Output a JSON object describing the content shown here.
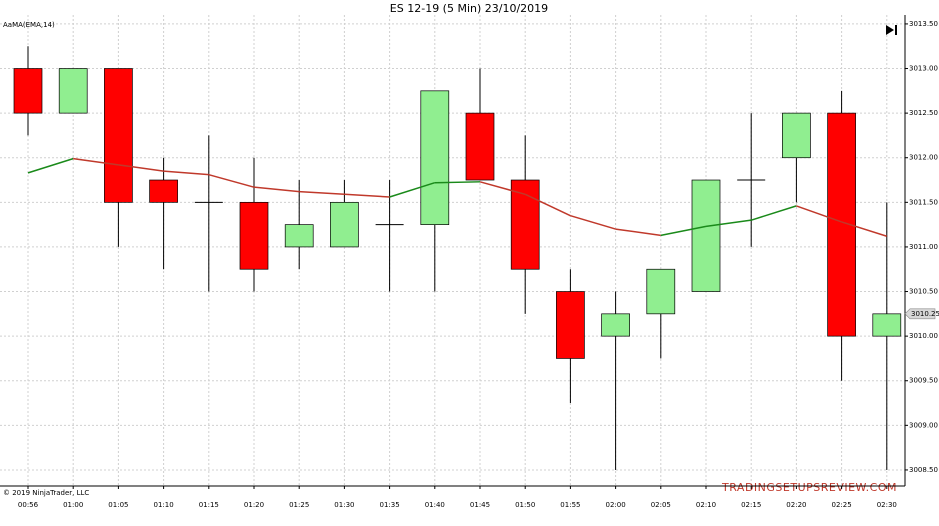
{
  "chart_data": {
    "type": "candlestick",
    "title": "ES 12-19 (5 Min)  23/10/2019",
    "copyright": "© 2019 NinjaTrader, LLC",
    "watermark": "TRADINGSETUPSREVIEW.COM",
    "categories": [
      "00:56",
      "01:00",
      "01:05",
      "01:10",
      "01:15",
      "01:20",
      "01:25",
      "01:30",
      "01:35",
      "01:40",
      "01:45",
      "01:50",
      "01:55",
      "02:00",
      "02:05",
      "02:10",
      "02:15",
      "02:20",
      "02:25",
      "02:30"
    ],
    "open": [
      3013.0,
      3012.5,
      3013.0,
      3011.75,
      3011.5,
      3011.5,
      3011.0,
      3011.0,
      3011.25,
      3011.25,
      3012.5,
      3011.75,
      3010.5,
      3010.0,
      3010.25,
      3010.5,
      3011.75,
      3012.0,
      3012.5,
      3010.0
    ],
    "high": [
      3013.25,
      3013.0,
      3013.0,
      3012.0,
      3012.25,
      3012.0,
      3011.75,
      3011.75,
      3011.75,
      3012.75,
      3013.0,
      3012.25,
      3010.75,
      3010.5,
      3010.75,
      3011.75,
      3012.5,
      3012.5,
      3012.75,
      3011.5
    ],
    "low": [
      3012.25,
      3012.5,
      3011.0,
      3010.75,
      3010.5,
      3010.5,
      3010.75,
      3011.0,
      3010.5,
      3010.5,
      3011.75,
      3010.25,
      3009.25,
      3008.5,
      3009.75,
      3010.5,
      3011.0,
      3011.5,
      3009.5,
      3008.5
    ],
    "close": [
      3012.5,
      3013.0,
      3011.5,
      3011.5,
      3011.5,
      3010.75,
      3011.25,
      3011.5,
      3011.25,
      3012.75,
      3011.75,
      3010.75,
      3009.75,
      3010.25,
      3010.75,
      3011.75,
      3011.75,
      3012.5,
      3010.0,
      3010.25
    ],
    "up_color": "#90ee90",
    "down_color": "#ff0000",
    "indicator": {
      "name": "AaMA(EMA,14)",
      "values": [
        3011.83,
        3011.99,
        3011.92,
        3011.85,
        3011.81,
        3011.67,
        3011.62,
        3011.59,
        3011.56,
        3011.72,
        3011.73,
        3011.59,
        3011.35,
        3011.2,
        3011.13,
        3011.23,
        3011.3,
        3011.46,
        3011.28,
        3011.12
      ],
      "up_color": "#1a8a1a",
      "down_color": "#c0392b"
    },
    "last_price": 3010.25,
    "ylim": [
      3008.32,
      3013.6
    ],
    "yticks": [
      {
        "value": 3008.5,
        "label": "3008.50"
      },
      {
        "value": 3009,
        "label": "3009.00"
      },
      {
        "value": 3009.5,
        "label": "3009.50"
      },
      {
        "value": 3010,
        "label": "3010.00"
      },
      {
        "value": 3010.5,
        "label": "3010.50"
      },
      {
        "value": 3011,
        "label": "3011.00"
      },
      {
        "value": 3011.5,
        "label": "3011.50"
      },
      {
        "value": 3012,
        "label": "3012.00"
      },
      {
        "value": 3012.5,
        "label": "3012.50"
      },
      {
        "value": 3013,
        "label": "3013.00"
      },
      {
        "value": 3013.5,
        "label": "3013.50"
      }
    ],
    "grid": true
  }
}
